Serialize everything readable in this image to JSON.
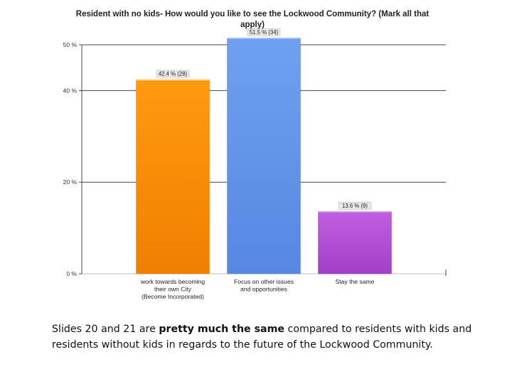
{
  "chart_data": {
    "type": "bar",
    "title": "Resident with no kids- How would you like to see the Lockwood Community? (Mark all that apply)",
    "categories": [
      [
        "work towards becoming",
        "their own City",
        "(Become Incorporated)"
      ],
      [
        "Focus on other issues",
        "and opportunities"
      ],
      [
        "Stay the same"
      ]
    ],
    "values": [
      42.4,
      51.5,
      13.6
    ],
    "counts": [
      28,
      34,
      9
    ],
    "data_labels": [
      "42.4 % (28)",
      "51.5 % (34)",
      "13.6 % (9)"
    ],
    "y_ticks": [
      0,
      20,
      40,
      50
    ],
    "y_tick_labels": [
      "0 %",
      "20 %",
      "40 %",
      "50 %"
    ],
    "ylim": [
      0,
      50
    ],
    "grid": true,
    "colors": [
      "#f07f00",
      "#5588e0",
      "#a040c8"
    ],
    "colors_light": [
      "#ff9a10",
      "#6fa0f0",
      "#c060e0"
    ]
  },
  "caption": {
    "prefix": "Slides 20 and 21 are ",
    "bold": "pretty much the same",
    "suffix": " compared to residents with kids and residents without kids in regards to the future of the Lockwood Community."
  }
}
